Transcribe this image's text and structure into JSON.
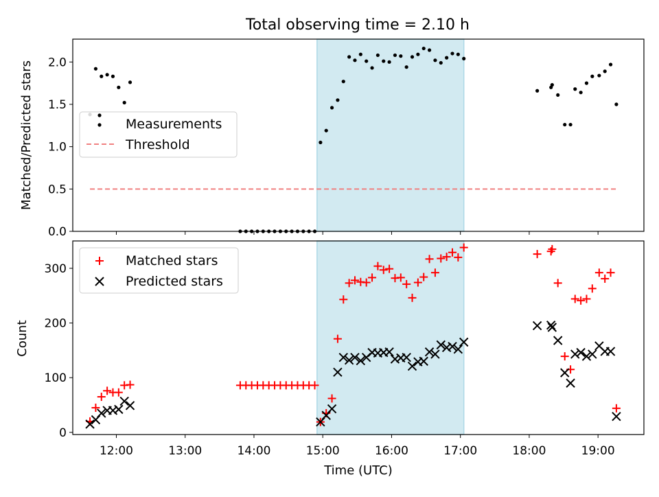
{
  "title": "Total observing time = 2.10 h",
  "colors": {
    "shade": "#add8e6",
    "matched": "#ff0000",
    "predicted": "#000000",
    "threshold": "#f08080",
    "measurement": "#000000"
  },
  "chart_data": [
    {
      "type": "scatter",
      "ylabel": "Matched/Predicted stars",
      "xlim": [
        "11:22",
        "19:40"
      ],
      "ylim": [
        0,
        2.27
      ],
      "yticks": [
        "0.0",
        "0.5",
        "1.0",
        "1.5",
        "2.0"
      ],
      "shaded_region": {
        "x": [
          "14:55",
          "17:03"
        ]
      },
      "legend": {
        "placement": "center-left",
        "entries": [
          "Measurements",
          "Threshold"
        ]
      },
      "threshold": {
        "name": "Threshold",
        "y": 0.5,
        "x": [
          "11:37",
          "19:17"
        ]
      },
      "series": [
        {
          "name": "Measurements",
          "marker": "dot",
          "points": [
            [
              "11:37",
              1.38
            ],
            [
              "11:42",
              1.92
            ],
            [
              "11:47",
              1.83
            ],
            [
              "11:52",
              1.85
            ],
            [
              "11:57",
              1.83
            ],
            [
              "12:02",
              1.7
            ],
            [
              "12:07",
              1.52
            ],
            [
              "12:12",
              1.76
            ],
            [
              "13:48",
              0
            ],
            [
              "13:53",
              0
            ],
            [
              "13:58",
              0
            ],
            [
              "14:03",
              0
            ],
            [
              "14:08",
              0
            ],
            [
              "14:13",
              0
            ],
            [
              "14:18",
              0
            ],
            [
              "14:23",
              0
            ],
            [
              "14:28",
              0
            ],
            [
              "14:33",
              0
            ],
            [
              "14:38",
              0
            ],
            [
              "14:43",
              0
            ],
            [
              "14:48",
              0
            ],
            [
              "14:53",
              0
            ],
            [
              "14:58",
              1.05
            ],
            [
              "15:03",
              1.19
            ],
            [
              "15:08",
              1.46
            ],
            [
              "15:13",
              1.55
            ],
            [
              "15:18",
              1.77
            ],
            [
              "15:23",
              2.06
            ],
            [
              "15:28",
              2.02
            ],
            [
              "15:33",
              2.09
            ],
            [
              "15:38",
              2.01
            ],
            [
              "15:43",
              1.93
            ],
            [
              "15:48",
              2.08
            ],
            [
              "15:53",
              2.01
            ],
            [
              "15:58",
              2.0
            ],
            [
              "16:03",
              2.08
            ],
            [
              "16:08",
              2.07
            ],
            [
              "16:13",
              1.94
            ],
            [
              "16:18",
              2.06
            ],
            [
              "16:23",
              2.09
            ],
            [
              "16:28",
              2.16
            ],
            [
              "16:33",
              2.14
            ],
            [
              "16:38",
              2.02
            ],
            [
              "16:43",
              1.99
            ],
            [
              "16:48",
              2.05
            ],
            [
              "16:53",
              2.1
            ],
            [
              "16:58",
              2.09
            ],
            [
              "17:03",
              2.04
            ],
            [
              "18:07",
              1.66
            ],
            [
              "18:19",
              1.7
            ],
            [
              "18:20",
              1.73
            ],
            [
              "18:25",
              1.61
            ],
            [
              "18:31",
              1.26
            ],
            [
              "18:36",
              1.26
            ],
            [
              "18:40",
              1.68
            ],
            [
              "18:45",
              1.64
            ],
            [
              "18:50",
              1.75
            ],
            [
              "18:55",
              1.83
            ],
            [
              "19:01",
              1.84
            ],
            [
              "19:06",
              1.89
            ],
            [
              "19:11",
              1.97
            ],
            [
              "19:16",
              1.5
            ]
          ]
        }
      ]
    },
    {
      "type": "scatter",
      "xlabel": "Time (UTC)",
      "ylabel": "Count",
      "xlim": [
        "11:22",
        "19:40"
      ],
      "ylim": [
        -4,
        350
      ],
      "xticks": [
        "12:00",
        "13:00",
        "14:00",
        "15:00",
        "16:00",
        "17:00",
        "18:00",
        "19:00"
      ],
      "yticks": [
        "0",
        "100",
        "200",
        "300"
      ],
      "shaded_region": {
        "x": [
          "14:55",
          "17:03"
        ]
      },
      "legend": {
        "placement": "top-left",
        "entries": [
          "Matched stars",
          "Predicted stars"
        ]
      },
      "series": [
        {
          "name": "Matched stars",
          "marker": "plus",
          "points": [
            [
              "11:37",
              20
            ],
            [
              "11:42",
              45
            ],
            [
              "11:47",
              65
            ],
            [
              "11:52",
              76
            ],
            [
              "11:57",
              73
            ],
            [
              "12:02",
              73
            ],
            [
              "12:07",
              86
            ],
            [
              "12:12",
              87
            ],
            [
              "13:48",
              86
            ],
            [
              "13:53",
              86
            ],
            [
              "13:58",
              86
            ],
            [
              "14:03",
              86
            ],
            [
              "14:08",
              86
            ],
            [
              "14:13",
              86
            ],
            [
              "14:18",
              86
            ],
            [
              "14:23",
              86
            ],
            [
              "14:28",
              86
            ],
            [
              "14:33",
              86
            ],
            [
              "14:38",
              86
            ],
            [
              "14:43",
              86
            ],
            [
              "14:48",
              86
            ],
            [
              "14:53",
              86
            ],
            [
              "14:58",
              19
            ],
            [
              "15:03",
              35
            ],
            [
              "15:08",
              62
            ],
            [
              "15:13",
              171
            ],
            [
              "15:18",
              243
            ],
            [
              "15:23",
              273
            ],
            [
              "15:28",
              278
            ],
            [
              "15:33",
              275
            ],
            [
              "15:38",
              274
            ],
            [
              "15:43",
              283
            ],
            [
              "15:48",
              304
            ],
            [
              "15:53",
              297
            ],
            [
              "15:58",
              299
            ],
            [
              "16:03",
              282
            ],
            [
              "16:08",
              283
            ],
            [
              "16:13",
              271
            ],
            [
              "16:18",
              246
            ],
            [
              "16:23",
              274
            ],
            [
              "16:28",
              284
            ],
            [
              "16:33",
              317
            ],
            [
              "16:38",
              292
            ],
            [
              "16:43",
              318
            ],
            [
              "16:48",
              321
            ],
            [
              "16:53",
              329
            ],
            [
              "16:58",
              320
            ],
            [
              "17:03",
              338
            ],
            [
              "18:07",
              326
            ],
            [
              "18:19",
              331
            ],
            [
              "18:20",
              335
            ],
            [
              "18:25",
              273
            ],
            [
              "18:31",
              139
            ],
            [
              "18:36",
              115
            ],
            [
              "18:40",
              244
            ],
            [
              "18:45",
              241
            ],
            [
              "18:50",
              244
            ],
            [
              "18:55",
              263
            ],
            [
              "19:01",
              292
            ],
            [
              "19:06",
              281
            ],
            [
              "19:11",
              292
            ],
            [
              "19:16",
              44
            ]
          ]
        },
        {
          "name": "Predicted stars",
          "marker": "x",
          "points": [
            [
              "11:37",
              15
            ],
            [
              "11:42",
              23
            ],
            [
              "11:47",
              35
            ],
            [
              "11:52",
              40
            ],
            [
              "11:57",
              40
            ],
            [
              "12:02",
              42
            ],
            [
              "12:07",
              57
            ],
            [
              "12:12",
              49
            ],
            [
              "14:58",
              19
            ],
            [
              "15:03",
              31
            ],
            [
              "15:08",
              43
            ],
            [
              "15:13",
              110
            ],
            [
              "15:18",
              137
            ],
            [
              "15:23",
              132
            ],
            [
              "15:28",
              137
            ],
            [
              "15:33",
              131
            ],
            [
              "15:38",
              137
            ],
            [
              "15:43",
              146
            ],
            [
              "15:48",
              145
            ],
            [
              "15:53",
              146
            ],
            [
              "15:58",
              147
            ],
            [
              "16:03",
              134
            ],
            [
              "16:08",
              136
            ],
            [
              "16:13",
              137
            ],
            [
              "16:18",
              121
            ],
            [
              "16:23",
              129
            ],
            [
              "16:28",
              130
            ],
            [
              "16:33",
              147
            ],
            [
              "16:38",
              143
            ],
            [
              "16:43",
              160
            ],
            [
              "16:48",
              155
            ],
            [
              "16:53",
              157
            ],
            [
              "16:58",
              152
            ],
            [
              "17:03",
              165
            ],
            [
              "18:07",
              195
            ],
            [
              "18:19",
              196
            ],
            [
              "18:20",
              192
            ],
            [
              "18:25",
              168
            ],
            [
              "18:31",
              109
            ],
            [
              "18:36",
              90
            ],
            [
              "18:40",
              143
            ],
            [
              "18:45",
              146
            ],
            [
              "18:50",
              139
            ],
            [
              "18:55",
              143
            ],
            [
              "19:01",
              158
            ],
            [
              "19:06",
              148
            ],
            [
              "19:11",
              148
            ],
            [
              "19:16",
              29
            ]
          ]
        }
      ]
    }
  ]
}
